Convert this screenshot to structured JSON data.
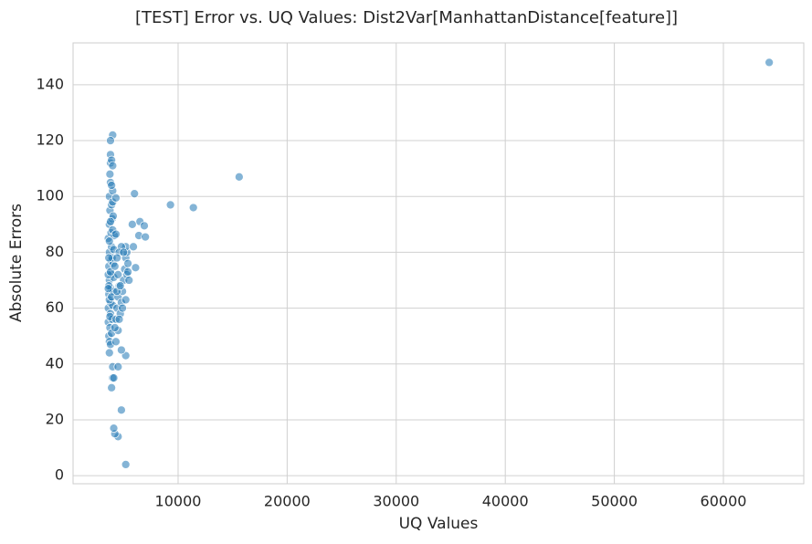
{
  "chart_data": {
    "type": "scatter",
    "title": "[TEST] Error vs. UQ Values: Dist2Var[ManhattanDistance[feature]]",
    "x_label": "UQ Values",
    "y_label": "Absolute Errors",
    "color": "#1f77b4",
    "grid": true,
    "xlim": [
      370,
      67370
    ],
    "ylim": [
      -2.9,
      155
    ],
    "xticks": [
      10000,
      20000,
      30000,
      40000,
      50000,
      60000
    ],
    "yticks": [
      0,
      20,
      40,
      60,
      80,
      100,
      120,
      140
    ],
    "x": [
      3600,
      3600,
      3650,
      3700,
      3650,
      3700,
      3600,
      3700,
      3750,
      3700,
      3800,
      3750,
      3800,
      3650,
      3700,
      3750,
      3800,
      3800,
      3850,
      3900,
      3850,
      3900,
      3850,
      3950,
      3900,
      4000,
      3700,
      3800,
      3900,
      3950,
      4000,
      4050,
      4100,
      4050,
      4100,
      4150,
      4050,
      3650,
      3600,
      3700,
      3750,
      3800,
      3900,
      3950,
      4000,
      3650,
      3600,
      3700,
      3800,
      3900,
      4000,
      4300,
      4400,
      4500,
      4600,
      4500,
      4700,
      4800,
      4900,
      5000,
      5100,
      5200,
      5300,
      5400,
      5300,
      5500,
      5200,
      4800,
      4600,
      4400,
      4200,
      4400,
      4600,
      4900,
      5200,
      4500,
      4300,
      4200,
      4700,
      5000,
      5400,
      64200,
      15600,
      11400,
      9300,
      6000,
      6500,
      6900,
      5800,
      6400,
      7000,
      5900,
      6100,
      5200,
      4800,
      4500,
      4200,
      4100,
      4000,
      4100,
      3900,
      4000,
      4500,
      5200,
      4800,
      4000,
      3800,
      3800,
      3900,
      4000,
      4300,
      4300
    ],
    "y": [
      60,
      55,
      65,
      70,
      75,
      80,
      85,
      90,
      95,
      100,
      105,
      108,
      112,
      50,
      48,
      53,
      58,
      62,
      67,
      72,
      77,
      82,
      87,
      92,
      97,
      102,
      44,
      47,
      51,
      56,
      61,
      66,
      71,
      76,
      81,
      86,
      93,
      68,
      72,
      63,
      57,
      73,
      64,
      78,
      88,
      78,
      67,
      84,
      91,
      104,
      98,
      56,
      60,
      64,
      68,
      72,
      58,
      62,
      66,
      70,
      74,
      78,
      80,
      76,
      72,
      70,
      82,
      82,
      80,
      78,
      75,
      66,
      56,
      60,
      63,
      52,
      48,
      53,
      68,
      80,
      73,
      148,
      107,
      96,
      97,
      101,
      91,
      89.5,
      90,
      86,
      85.5,
      82,
      74.5,
      4,
      23.5,
      14,
      15,
      17,
      35,
      35,
      31.5,
      39,
      39,
      43,
      45,
      122,
      120,
      115,
      113,
      111,
      99.5,
      86.5
    ]
  }
}
